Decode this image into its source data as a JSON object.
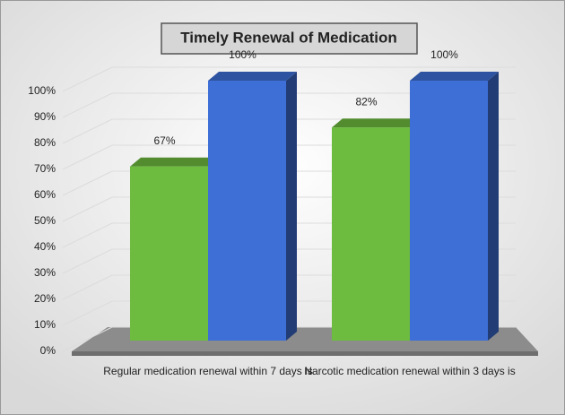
{
  "chart_data": {
    "type": "bar3d",
    "title": "Timely Renewal of Medication",
    "categories": [
      "Regular medication renewal within 7 days is",
      "Narcotic medication renewal within 3 days is"
    ],
    "series": [
      {
        "color": "#6dbb3f",
        "values": [
          67,
          82
        ],
        "value_labels": [
          "67%",
          "82%"
        ]
      },
      {
        "color": "#3d6fd6",
        "values": [
          100,
          100
        ],
        "value_labels": [
          "100%",
          "100%"
        ]
      }
    ],
    "ylim": [
      0,
      100
    ],
    "yticks": [
      {
        "value": 0,
        "label": "0%"
      },
      {
        "value": 10,
        "label": "10%"
      },
      {
        "value": 20,
        "label": "20%"
      },
      {
        "value": 30,
        "label": "30%"
      },
      {
        "value": 40,
        "label": "40%"
      },
      {
        "value": 50,
        "label": "50%"
      },
      {
        "value": 60,
        "label": "60%"
      },
      {
        "value": 70,
        "label": "70%"
      },
      {
        "value": 80,
        "label": "80%"
      },
      {
        "value": 90,
        "label": "90%"
      },
      {
        "value": 100,
        "label": "100%"
      }
    ],
    "grid": true
  }
}
